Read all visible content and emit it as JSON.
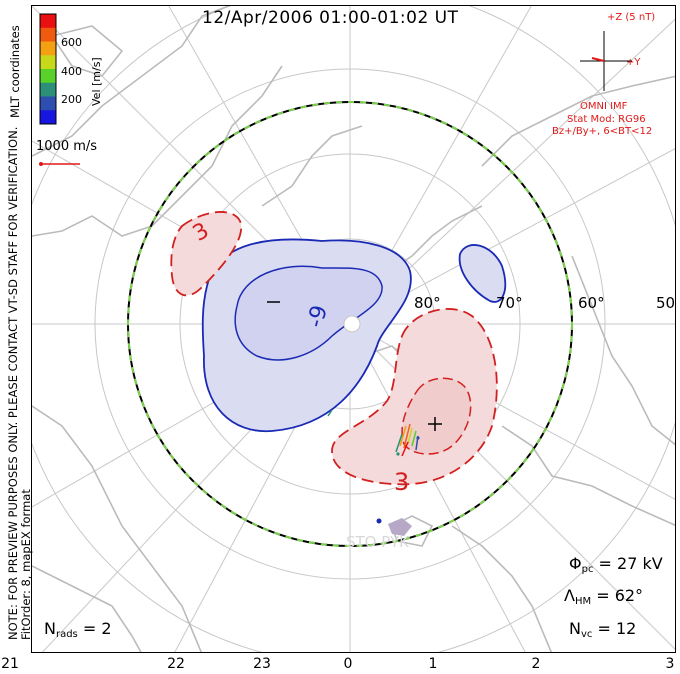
{
  "title": "12/Apr/2006 01:00-01:02 UT",
  "side_note_line1": "NOTE: FOR PREVIEW PURPOSES ONLY. PLEASE CONTACT VT-SD STAFF FOR VERIFICATION.",
  "side_note_line2": "FitOrder: 8, mapEX format",
  "coords_label": "MLT coordinates",
  "colorbar": {
    "label": "Vel [m/s]",
    "ticks": [
      "600",
      "400",
      "200"
    ],
    "colors": [
      "#e81010",
      "#f05a10",
      "#f3a012",
      "#c8d81a",
      "#5ad02a",
      "#2c8f78",
      "#2e4fb0",
      "#1616e0"
    ]
  },
  "reference_vector": {
    "label": "1000 m/s",
    "color": "#e01818"
  },
  "imf": {
    "z_label": "+Z (5 nT)",
    "y_label": "+Y",
    "source": "OMNI IMF",
    "model_line1": "Stat Mod: RG96",
    "model_line2": "Bz+/By+, 6<BT<12"
  },
  "latitudes": [
    "80°",
    "70°",
    "60°",
    "50°"
  ],
  "contour_labels": {
    "negative": "-9",
    "positive": "3",
    "positive_upper": "3"
  },
  "stations": "STO PYK",
  "stats": {
    "phi_pc_symbol": "Φ",
    "phi_pc_sub": "pc",
    "phi_pc_value": "= 27 kV",
    "lambda_hm_symbol": "Λ",
    "lambda_hm_sub": "HM",
    "lambda_hm_value": "= 62°",
    "n_vc_symbol": "N",
    "n_vc_sub": "vc",
    "n_vc_value": "= 12",
    "n_rads_symbol": "N",
    "n_rads_sub": "rads",
    "n_rads_value": "= 2"
  },
  "mlt_hours": [
    "21",
    "22",
    "23",
    "0",
    "1",
    "2",
    "3"
  ]
}
